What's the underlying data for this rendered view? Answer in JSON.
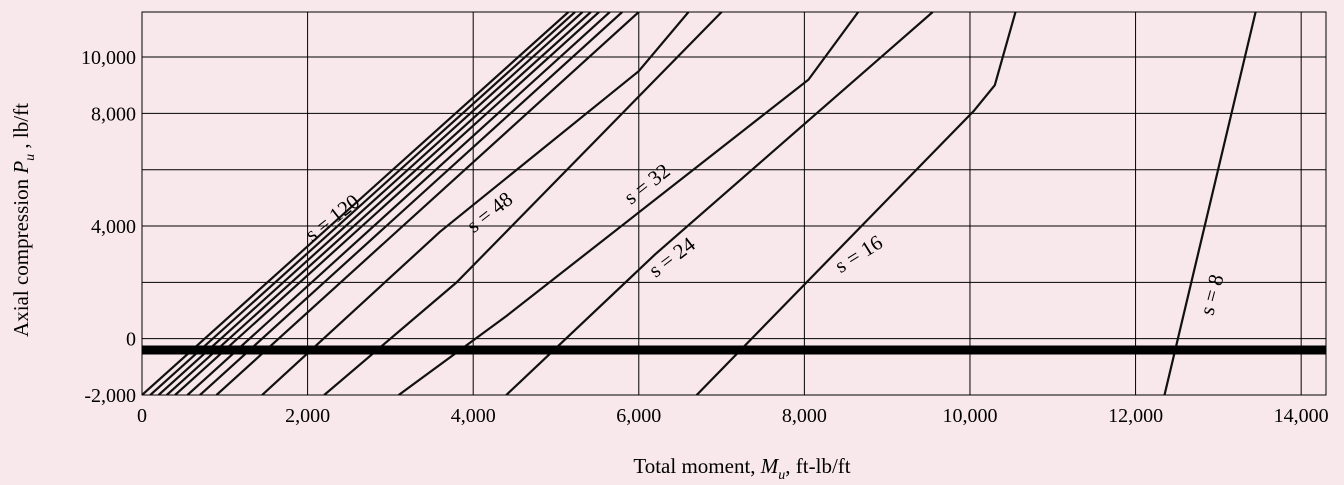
{
  "chart_data": {
    "type": "line",
    "xlabel_main": "Total moment, ",
    "xlabel_var": "M",
    "xlabel_sub": "u",
    "xlabel_unit": ", ft-lb/ft",
    "ylabel_main": "Axial compression ",
    "ylabel_var": "P",
    "ylabel_sub": "u",
    "ylabel_unit": " , lb/ft",
    "xlim": [
      0,
      14300
    ],
    "ylim": [
      -2000,
      11600
    ],
    "x_ticks": [
      0,
      2000,
      4000,
      6000,
      8000,
      10000,
      12000,
      14000
    ],
    "x_tick_labels": [
      "0",
      "2,000",
      "4,000",
      "6,000",
      "8,000",
      "10,000",
      "12,000",
      "14,000"
    ],
    "y_ticks": [
      -2000,
      0,
      4000,
      8000,
      10000
    ],
    "y_tick_labels": [
      "-2,000",
      "0",
      "4,000",
      "8,000",
      "10,000"
    ],
    "y_gridlines": [
      -2000,
      0,
      2000,
      4000,
      6000,
      8000,
      10000
    ],
    "x_gridlines": [
      2000,
      4000,
      6000,
      8000,
      10000,
      12000,
      14000
    ],
    "zero_band_value": -400,
    "grid": true,
    "series": [
      {
        "points": [
          [
            0,
            -2000
          ],
          [
            5150,
            11600
          ]
        ]
      },
      {
        "points": [
          [
            100,
            -2000
          ],
          [
            5230,
            11600
          ]
        ]
      },
      {
        "points": [
          [
            200,
            -2000
          ],
          [
            5320,
            11600
          ]
        ]
      },
      {
        "points": [
          [
            300,
            -2000
          ],
          [
            5420,
            11600
          ]
        ]
      },
      {
        "points": [
          [
            400,
            -2000
          ],
          [
            5520,
            11600
          ]
        ]
      },
      {
        "points": [
          [
            550,
            -2000
          ],
          [
            5650,
            11600
          ]
        ]
      },
      {
        "points": [
          [
            700,
            -2000
          ],
          [
            5800,
            11600
          ]
        ]
      },
      {
        "points": [
          [
            900,
            -2000
          ],
          [
            6000,
            11600
          ]
        ]
      },
      {
        "points": [
          [
            1450,
            -2000
          ],
          [
            3600,
            3800
          ],
          [
            6000,
            9500
          ],
          [
            6600,
            11600
          ]
        ]
      },
      {
        "points": [
          [
            2200,
            -2000
          ],
          [
            3800,
            2000
          ],
          [
            7000,
            11600
          ]
        ]
      },
      {
        "points": [
          [
            3100,
            -2000
          ],
          [
            4400,
            800
          ],
          [
            8050,
            9200
          ],
          [
            8650,
            11600
          ]
        ]
      },
      {
        "points": [
          [
            4400,
            -2000
          ],
          [
            6200,
            3000
          ],
          [
            9550,
            11600
          ]
        ]
      },
      {
        "points": [
          [
            6700,
            -2000
          ],
          [
            10050,
            8100
          ],
          [
            10300,
            9000
          ],
          [
            10550,
            11600
          ]
        ]
      },
      {
        "points": [
          [
            12350,
            -2000
          ],
          [
            13450,
            11600
          ]
        ]
      }
    ],
    "annotations": [
      {
        "text": "s = 120",
        "x": 2350,
        "y": 4100,
        "angle": -38
      },
      {
        "text": "s = 48",
        "x": 4250,
        "y": 4300,
        "angle": -38
      },
      {
        "text": "s = 32",
        "x": 6150,
        "y": 5300,
        "angle": -38
      },
      {
        "text": "s = 24",
        "x": 6450,
        "y": 2700,
        "angle": -37
      },
      {
        "text": "s = 16",
        "x": 8700,
        "y": 2800,
        "angle": -32
      },
      {
        "text": "s = 8",
        "x": 13000,
        "y": 1500,
        "angle": -75
      }
    ]
  }
}
